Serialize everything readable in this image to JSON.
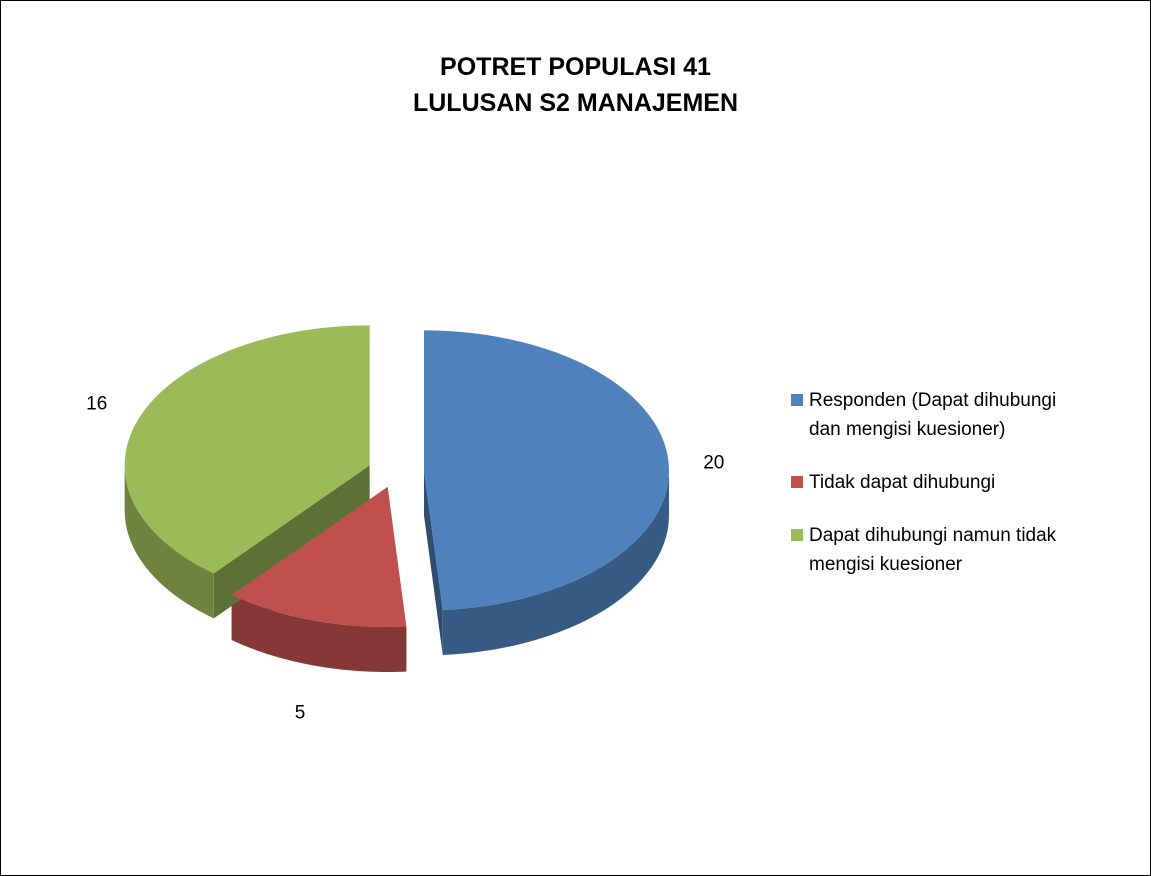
{
  "chart_data": {
    "type": "pie",
    "title": [
      "POTRET POPULASI 41",
      "LULUSAN S2 MANAJEMEN"
    ],
    "categories": [
      "Responden (Dapat dihubungi dan mengisi kuesioner)",
      "Tidak dapat dihubungi",
      "Dapat dihubungi namun tidak mengisi kuesioner"
    ],
    "values": [
      20,
      5,
      16
    ],
    "colors": [
      "#4f81bd",
      "#c0504d",
      "#9bbb59"
    ],
    "legend": "right"
  }
}
